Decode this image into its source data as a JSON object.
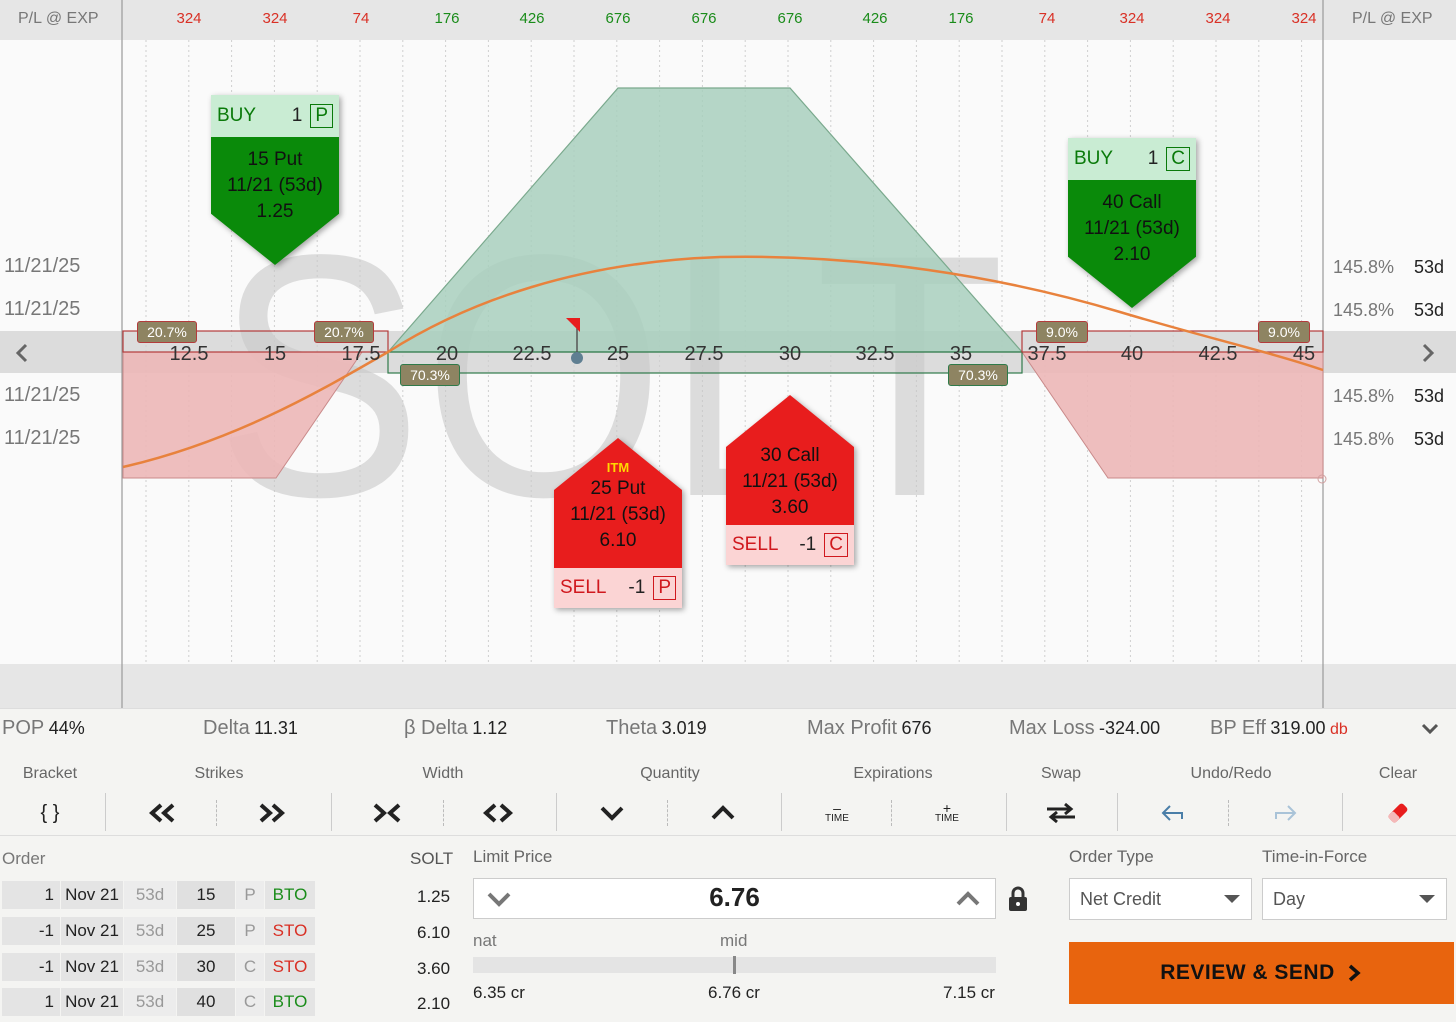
{
  "header": {
    "left_label": "P/L @ EXP",
    "right_label": "P/L @ EXP",
    "pl_values": [
      {
        "text": "324",
        "color": "#d93025"
      },
      {
        "text": "324",
        "color": "#d93025"
      },
      {
        "text": "74",
        "color": "#d93025"
      },
      {
        "text": "176",
        "color": "#1a8c1a"
      },
      {
        "text": "426",
        "color": "#1a8c1a"
      },
      {
        "text": "676",
        "color": "#1a8c1a"
      },
      {
        "text": "676",
        "color": "#1a8c1a"
      },
      {
        "text": "676",
        "color": "#1a8c1a"
      },
      {
        "text": "426",
        "color": "#1a8c1a"
      },
      {
        "text": "176",
        "color": "#1a8c1a"
      },
      {
        "text": "74",
        "color": "#d93025"
      },
      {
        "text": "324",
        "color": "#d93025"
      },
      {
        "text": "324",
        "color": "#d93025"
      },
      {
        "text": "324",
        "color": "#d93025"
      }
    ]
  },
  "chart": {
    "symbol_watermark": "SOLT",
    "strikes": [
      "12.5",
      "15",
      "17.5",
      "20",
      "22.5",
      "25",
      "27.5",
      "30",
      "32.5",
      "35",
      "37.5",
      "40",
      "42.5",
      "45"
    ],
    "left_dates": [
      "11/21/25",
      "11/21/25",
      "11/21/25",
      "11/21/25"
    ],
    "right_iv": [
      "145.8%",
      "145.8%",
      "145.8%",
      "145.8%"
    ],
    "right_dte": [
      "53d",
      "53d",
      "53d",
      "53d"
    ],
    "prob_badges": {
      "put_long_left": "20.7%",
      "put_long_right": "20.7%",
      "short_left": "70.3%",
      "short_right": "70.3%",
      "call_long_left": "9.0%",
      "call_long_right": "9.0%"
    },
    "colors": {
      "profit": "#a8cfbd",
      "loss": "#ecb7b7",
      "theo": "#e8823d",
      "buy": "#0a8a0a",
      "sell": "#e81d1d"
    },
    "legs": [
      {
        "action": "BUY",
        "qty": "1",
        "type": "P",
        "desc": "15 Put",
        "exp": "11/21 (53d)",
        "price": "1.25",
        "itm": ""
      },
      {
        "action": "BUY",
        "qty": "1",
        "type": "C",
        "desc": "40 Call",
        "exp": "11/21 (53d)",
        "price": "2.10",
        "itm": ""
      },
      {
        "action": "SELL",
        "qty": "-1",
        "type": "P",
        "desc": "25 Put",
        "exp": "11/21 (53d)",
        "price": "6.10",
        "itm": "ITM"
      },
      {
        "action": "SELL",
        "qty": "-1",
        "type": "C",
        "desc": "30 Call",
        "exp": "11/21 (53d)",
        "price": "3.60",
        "itm": ""
      }
    ]
  },
  "metrics": {
    "pop_label": "POP",
    "pop_value": "44%",
    "delta_label": "Delta",
    "delta_value": "11.31",
    "bdelta_label": "β Delta",
    "bdelta_value": "1.12",
    "theta_label": "Theta",
    "theta_value": "3.019",
    "maxprofit_label": "Max Profit",
    "maxprofit_value": "676",
    "maxloss_label": "Max Loss",
    "maxloss_value": "-324.00",
    "bpeff_label": "BP Eff",
    "bpeff_value": "319.00",
    "bpeff_unit": "db"
  },
  "toolbar": {
    "bracket": "Bracket",
    "strikes": "Strikes",
    "width": "Width",
    "quantity": "Quantity",
    "expirations": "Expirations",
    "swap": "Swap",
    "undoredo": "Undo/Redo",
    "clear": "Clear",
    "bracket_glyph": "{ }",
    "time_minus": "TIME",
    "time_plus": "TIME"
  },
  "order": {
    "order_label": "Order",
    "symbol": "SOLT",
    "rows": [
      {
        "qty": "1",
        "exp": "Nov 21",
        "dte": "53d",
        "strike": "15",
        "type": "P",
        "action": "BTO",
        "price": "1.25"
      },
      {
        "qty": "-1",
        "exp": "Nov 21",
        "dte": "53d",
        "strike": "25",
        "type": "P",
        "action": "STO",
        "price": "6.10"
      },
      {
        "qty": "-1",
        "exp": "Nov 21",
        "dte": "53d",
        "strike": "30",
        "type": "C",
        "action": "STO",
        "price": "3.60"
      },
      {
        "qty": "1",
        "exp": "Nov 21",
        "dte": "53d",
        "strike": "40",
        "type": "C",
        "action": "BTO",
        "price": "2.10"
      }
    ],
    "limit_label": "Limit Price",
    "limit_value": "6.76",
    "nat_label": "nat",
    "mid_label": "mid",
    "nat_value": "6.35 cr",
    "mid_value": "6.76 cr",
    "far_value": "7.15 cr",
    "order_type_label": "Order Type",
    "order_type_value": "Net Credit",
    "tif_label": "Time-in-Force",
    "tif_value": "Day",
    "review_label": "REVIEW & SEND"
  }
}
